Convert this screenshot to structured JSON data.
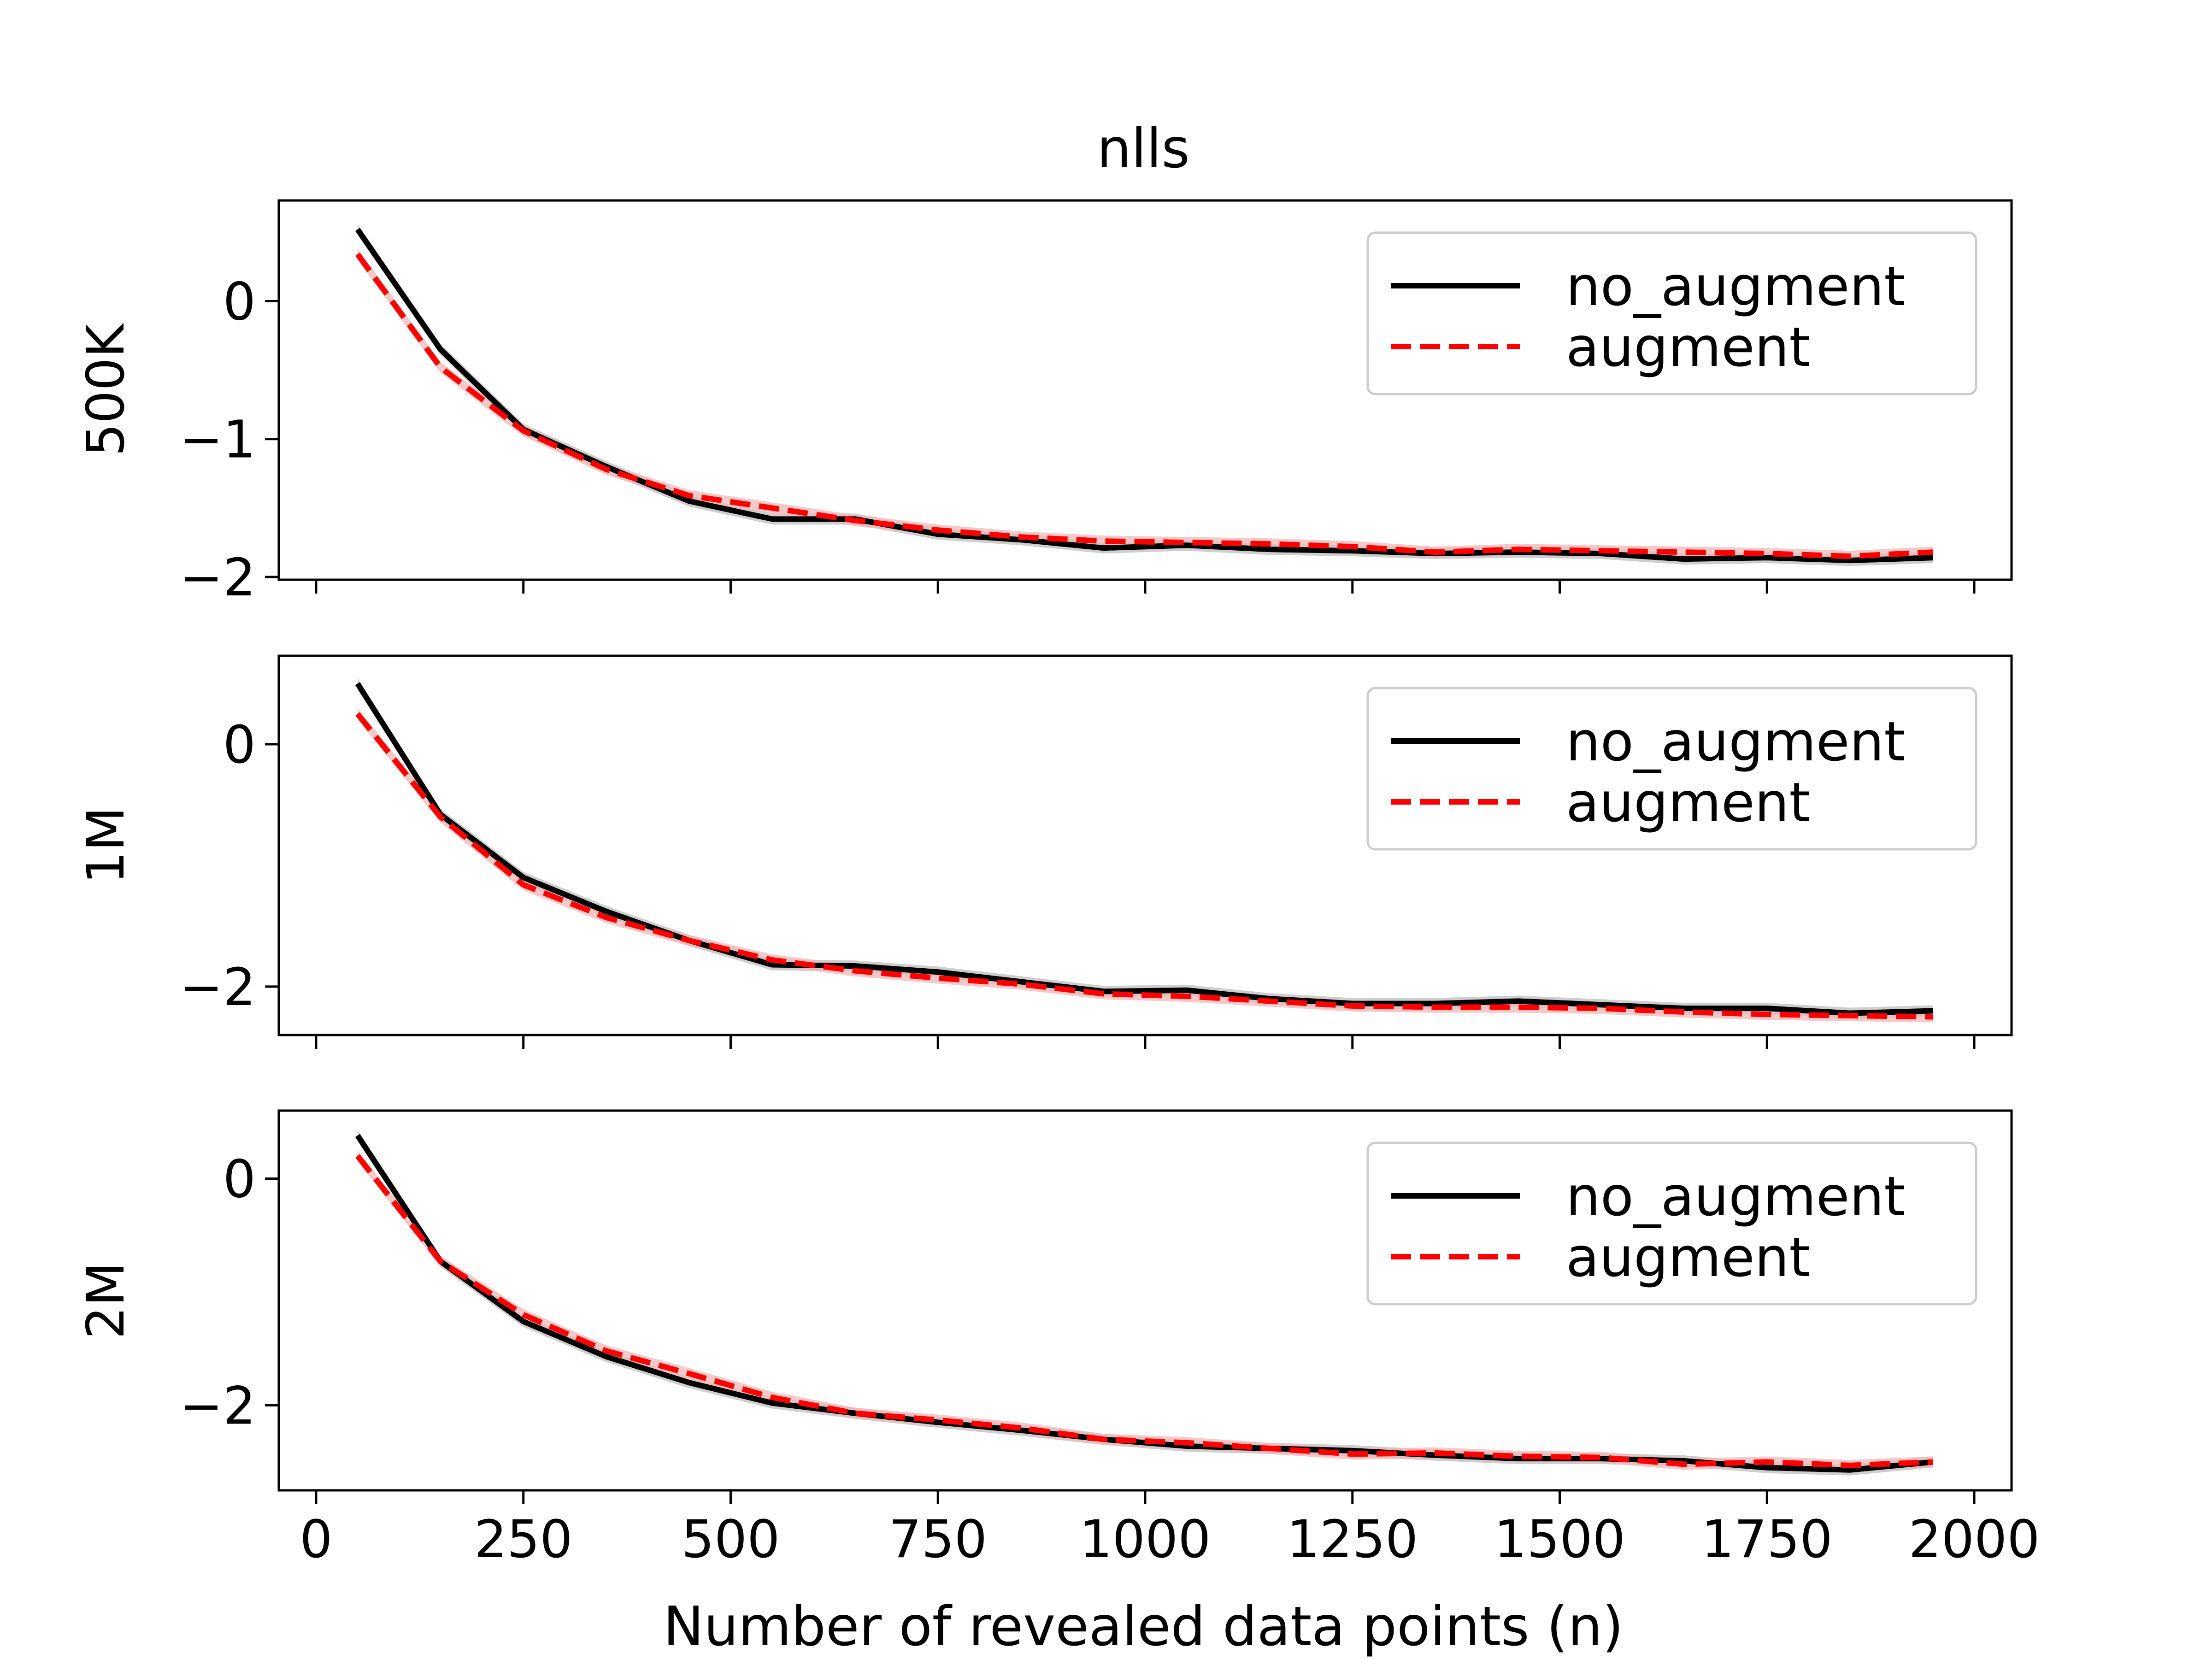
{
  "figure": {
    "title": "nlls",
    "xlabel": "Number of revealed data points (n)"
  },
  "legend": {
    "no_augment": "no_augment",
    "augment": "augment"
  },
  "colors": {
    "no_augment": "#000000",
    "augment": "#ff0000",
    "band_no_augment": "#bdbdbd",
    "band_augment": "#f4b6b6"
  },
  "chart_data": [
    {
      "type": "line",
      "panel": "500K",
      "ylabel": "500K",
      "xlim": [
        -45,
        2045
      ],
      "ylim": [
        -2.02,
        0.73
      ],
      "xticks": [
        0,
        250,
        500,
        750,
        1000,
        1250,
        1500,
        1750,
        2000
      ],
      "yticks": [
        0,
        -1,
        -2
      ],
      "legend_position": "upper right",
      "x": [
        50,
        150,
        250,
        350,
        450,
        550,
        650,
        750,
        850,
        950,
        1050,
        1150,
        1250,
        1350,
        1450,
        1550,
        1650,
        1750,
        1850,
        1950
      ],
      "series": [
        {
          "name": "no_augment",
          "style": "solid",
          "values": [
            0.52,
            -0.35,
            -0.93,
            -1.2,
            -1.45,
            -1.58,
            -1.58,
            -1.69,
            -1.73,
            -1.79,
            -1.77,
            -1.8,
            -1.81,
            -1.83,
            -1.82,
            -1.83,
            -1.87,
            -1.86,
            -1.88,
            -1.86
          ]
        },
        {
          "name": "augment",
          "style": "dashed",
          "values": [
            0.34,
            -0.48,
            -0.94,
            -1.22,
            -1.41,
            -1.5,
            -1.59,
            -1.66,
            -1.71,
            -1.74,
            -1.75,
            -1.76,
            -1.78,
            -1.82,
            -1.8,
            -1.81,
            -1.82,
            -1.83,
            -1.85,
            -1.82
          ]
        }
      ]
    },
    {
      "type": "line",
      "panel": "1M",
      "ylabel": "1M",
      "xlim": [
        -45,
        2045
      ],
      "ylim": [
        -2.4,
        0.73
      ],
      "xticks": [
        0,
        250,
        500,
        750,
        1000,
        1250,
        1500,
        1750,
        2000
      ],
      "yticks": [
        0,
        -2
      ],
      "legend_position": "upper right",
      "x": [
        50,
        150,
        250,
        350,
        450,
        550,
        650,
        750,
        850,
        950,
        1050,
        1150,
        1250,
        1350,
        1450,
        1550,
        1650,
        1750,
        1850,
        1950
      ],
      "series": [
        {
          "name": "no_augment",
          "style": "solid",
          "values": [
            0.5,
            -0.58,
            -1.1,
            -1.38,
            -1.62,
            -1.82,
            -1.83,
            -1.88,
            -1.96,
            -2.04,
            -2.03,
            -2.1,
            -2.14,
            -2.14,
            -2.12,
            -2.15,
            -2.18,
            -2.18,
            -2.22,
            -2.2
          ]
        },
        {
          "name": "augment",
          "style": "dashed",
          "values": [
            0.25,
            -0.6,
            -1.16,
            -1.43,
            -1.62,
            -1.78,
            -1.87,
            -1.93,
            -1.98,
            -2.06,
            -2.08,
            -2.12,
            -2.16,
            -2.17,
            -2.17,
            -2.18,
            -2.21,
            -2.23,
            -2.24,
            -2.25
          ]
        }
      ]
    },
    {
      "type": "line",
      "panel": "2M",
      "ylabel": "2M",
      "xlim": [
        -45,
        2045
      ],
      "ylim": [
        -2.75,
        0.6
      ],
      "xticks": [
        0,
        250,
        500,
        750,
        1000,
        1250,
        1500,
        1750,
        2000
      ],
      "yticks": [
        0,
        -2
      ],
      "legend_position": "upper right",
      "x": [
        50,
        150,
        250,
        350,
        450,
        550,
        650,
        750,
        850,
        950,
        1050,
        1150,
        1250,
        1350,
        1450,
        1550,
        1650,
        1750,
        1850,
        1950
      ],
      "series": [
        {
          "name": "no_augment",
          "style": "solid",
          "values": [
            0.38,
            -0.73,
            -1.26,
            -1.57,
            -1.8,
            -1.98,
            -2.07,
            -2.15,
            -2.22,
            -2.3,
            -2.36,
            -2.38,
            -2.4,
            -2.44,
            -2.47,
            -2.47,
            -2.49,
            -2.55,
            -2.57,
            -2.5
          ]
        },
        {
          "name": "augment",
          "style": "dashed",
          "values": [
            0.2,
            -0.73,
            -1.2,
            -1.52,
            -1.72,
            -1.93,
            -2.07,
            -2.13,
            -2.2,
            -2.3,
            -2.33,
            -2.38,
            -2.43,
            -2.42,
            -2.45,
            -2.46,
            -2.52,
            -2.5,
            -2.53,
            -2.5
          ]
        }
      ]
    }
  ]
}
